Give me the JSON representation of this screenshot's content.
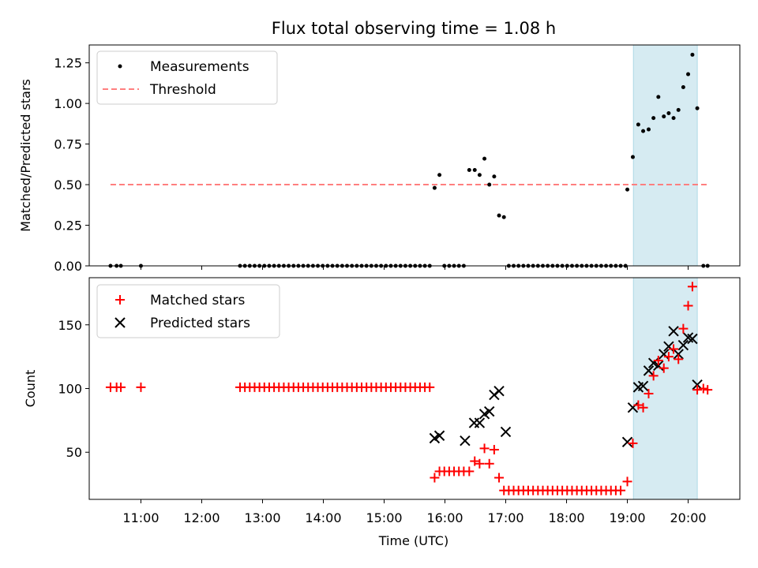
{
  "chart_data": {
    "type": "scatter",
    "title": "Flux total observing time = 1.08 h",
    "xlabel": "Time (UTC)",
    "xlim": [
      10.15,
      20.85
    ],
    "xticks": [
      {
        "value": 11,
        "label": "11:00"
      },
      {
        "value": 12,
        "label": "12:00"
      },
      {
        "value": 13,
        "label": "13:00"
      },
      {
        "value": 14,
        "label": "14:00"
      },
      {
        "value": 15,
        "label": "15:00"
      },
      {
        "value": 16,
        "label": "16:00"
      },
      {
        "value": 17,
        "label": "17:00"
      },
      {
        "value": 18,
        "label": "18:00"
      },
      {
        "value": 19,
        "label": "19:00"
      },
      {
        "value": 20,
        "label": "20:00"
      }
    ],
    "shaded_region": {
      "x_start": 19.1,
      "x_end": 20.15,
      "color": "#add8e6"
    },
    "colors": {
      "measurements": "#000000",
      "threshold": "#ff7f7f",
      "matched": "#ff0000",
      "predicted": "#000000"
    },
    "top_panel": {
      "ylabel": "Matched/Predicted stars",
      "ylim": [
        0,
        1.36
      ],
      "yticks": [
        "0.00",
        "0.25",
        "0.50",
        "0.75",
        "1.00",
        "1.25"
      ],
      "legend_position": "upper-left",
      "series": [
        {
          "name": "Measurements",
          "marker": "dot",
          "points": [
            [
              10.5,
              0
            ],
            [
              10.6,
              0
            ],
            [
              10.67,
              0
            ],
            [
              11.0,
              0
            ],
            [
              12.63,
              0
            ],
            [
              12.71,
              0
            ],
            [
              12.79,
              0
            ],
            [
              12.87,
              0
            ],
            [
              12.95,
              0
            ],
            [
              13.03,
              0
            ],
            [
              13.11,
              0
            ],
            [
              13.19,
              0
            ],
            [
              13.27,
              0
            ],
            [
              13.35,
              0
            ],
            [
              13.43,
              0
            ],
            [
              13.51,
              0
            ],
            [
              13.59,
              0
            ],
            [
              13.67,
              0
            ],
            [
              13.75,
              0
            ],
            [
              13.83,
              0
            ],
            [
              13.91,
              0
            ],
            [
              13.99,
              0
            ],
            [
              14.07,
              0
            ],
            [
              14.15,
              0
            ],
            [
              14.23,
              0
            ],
            [
              14.31,
              0
            ],
            [
              14.39,
              0
            ],
            [
              14.47,
              0
            ],
            [
              14.55,
              0
            ],
            [
              14.63,
              0
            ],
            [
              14.71,
              0
            ],
            [
              14.79,
              0
            ],
            [
              14.87,
              0
            ],
            [
              14.95,
              0
            ],
            [
              15.03,
              0
            ],
            [
              15.11,
              0
            ],
            [
              15.19,
              0
            ],
            [
              15.27,
              0
            ],
            [
              15.35,
              0
            ],
            [
              15.43,
              0
            ],
            [
              15.51,
              0
            ],
            [
              15.59,
              0
            ],
            [
              15.67,
              0
            ],
            [
              15.75,
              0
            ],
            [
              15.83,
              0.48
            ],
            [
              15.91,
              0.56
            ],
            [
              15.99,
              0
            ],
            [
              16.07,
              0
            ],
            [
              16.15,
              0
            ],
            [
              16.23,
              0
            ],
            [
              16.31,
              0
            ],
            [
              16.4,
              0.59
            ],
            [
              16.49,
              0.59
            ],
            [
              16.57,
              0.56
            ],
            [
              16.65,
              0.66
            ],
            [
              16.73,
              0.5
            ],
            [
              16.81,
              0.55
            ],
            [
              16.89,
              0.31
            ],
            [
              16.97,
              0.3
            ],
            [
              17.05,
              0
            ],
            [
              17.13,
              0
            ],
            [
              17.21,
              0
            ],
            [
              17.29,
              0
            ],
            [
              17.37,
              0
            ],
            [
              17.45,
              0
            ],
            [
              17.53,
              0
            ],
            [
              17.61,
              0
            ],
            [
              17.69,
              0
            ],
            [
              17.77,
              0
            ],
            [
              17.85,
              0
            ],
            [
              17.93,
              0
            ],
            [
              18.01,
              0
            ],
            [
              18.09,
              0
            ],
            [
              18.17,
              0
            ],
            [
              18.25,
              0
            ],
            [
              18.33,
              0
            ],
            [
              18.41,
              0
            ],
            [
              18.49,
              0
            ],
            [
              18.57,
              0
            ],
            [
              18.65,
              0
            ],
            [
              18.73,
              0
            ],
            [
              18.81,
              0
            ],
            [
              18.89,
              0
            ],
            [
              18.97,
              0
            ],
            [
              19.0,
              0.47
            ],
            [
              19.09,
              0.67
            ],
            [
              19.18,
              0.87
            ],
            [
              19.26,
              0.83
            ],
            [
              19.35,
              0.84
            ],
            [
              19.43,
              0.91
            ],
            [
              19.51,
              1.04
            ],
            [
              19.6,
              0.92
            ],
            [
              19.68,
              0.94
            ],
            [
              19.76,
              0.91
            ],
            [
              19.84,
              0.96
            ],
            [
              19.92,
              1.1
            ],
            [
              20.0,
              1.18
            ],
            [
              20.07,
              1.3
            ],
            [
              20.15,
              0.97
            ],
            [
              20.25,
              0
            ],
            [
              20.32,
              0
            ]
          ]
        },
        {
          "name": "Threshold",
          "marker": "dashed-line",
          "points": [
            [
              10.5,
              0.5
            ],
            [
              20.35,
              0.5
            ]
          ]
        }
      ]
    },
    "bottom_panel": {
      "ylabel": "Count",
      "ylim": [
        13,
        187
      ],
      "yticks": [
        {
          "value": 50,
          "label": "50"
        },
        {
          "value": 100,
          "label": "100"
        },
        {
          "value": 150,
          "label": "150"
        }
      ],
      "legend_position": "upper-left",
      "series": [
        {
          "name": "Matched stars",
          "marker": "plus",
          "points": [
            [
              10.5,
              101
            ],
            [
              10.6,
              101
            ],
            [
              10.67,
              101
            ],
            [
              11.0,
              101
            ],
            [
              12.63,
              101
            ],
            [
              12.71,
              101
            ],
            [
              12.79,
              101
            ],
            [
              12.87,
              101
            ],
            [
              12.95,
              101
            ],
            [
              13.03,
              101
            ],
            [
              13.11,
              101
            ],
            [
              13.19,
              101
            ],
            [
              13.27,
              101
            ],
            [
              13.35,
              101
            ],
            [
              13.43,
              101
            ],
            [
              13.51,
              101
            ],
            [
              13.59,
              101
            ],
            [
              13.67,
              101
            ],
            [
              13.75,
              101
            ],
            [
              13.83,
              101
            ],
            [
              13.91,
              101
            ],
            [
              13.99,
              101
            ],
            [
              14.07,
              101
            ],
            [
              14.15,
              101
            ],
            [
              14.23,
              101
            ],
            [
              14.31,
              101
            ],
            [
              14.39,
              101
            ],
            [
              14.47,
              101
            ],
            [
              14.55,
              101
            ],
            [
              14.63,
              101
            ],
            [
              14.71,
              101
            ],
            [
              14.79,
              101
            ],
            [
              14.87,
              101
            ],
            [
              14.95,
              101
            ],
            [
              15.03,
              101
            ],
            [
              15.11,
              101
            ],
            [
              15.19,
              101
            ],
            [
              15.27,
              101
            ],
            [
              15.35,
              101
            ],
            [
              15.43,
              101
            ],
            [
              15.51,
              101
            ],
            [
              15.59,
              101
            ],
            [
              15.67,
              101
            ],
            [
              15.75,
              101
            ],
            [
              15.83,
              30
            ],
            [
              15.91,
              35
            ],
            [
              15.99,
              35
            ],
            [
              16.07,
              35
            ],
            [
              16.15,
              35
            ],
            [
              16.23,
              35
            ],
            [
              16.31,
              35
            ],
            [
              16.4,
              35
            ],
            [
              16.49,
              43
            ],
            [
              16.57,
              41
            ],
            [
              16.65,
              53
            ],
            [
              16.73,
              41
            ],
            [
              16.81,
              52
            ],
            [
              16.89,
              30
            ],
            [
              16.97,
              20
            ],
            [
              17.05,
              20
            ],
            [
              17.13,
              20
            ],
            [
              17.21,
              20
            ],
            [
              17.29,
              20
            ],
            [
              17.37,
              20
            ],
            [
              17.45,
              20
            ],
            [
              17.53,
              20
            ],
            [
              17.61,
              20
            ],
            [
              17.69,
              20
            ],
            [
              17.77,
              20
            ],
            [
              17.85,
              20
            ],
            [
              17.93,
              20
            ],
            [
              18.01,
              20
            ],
            [
              18.09,
              20
            ],
            [
              18.17,
              20
            ],
            [
              18.25,
              20
            ],
            [
              18.33,
              20
            ],
            [
              18.41,
              20
            ],
            [
              18.49,
              20
            ],
            [
              18.57,
              20
            ],
            [
              18.65,
              20
            ],
            [
              18.73,
              20
            ],
            [
              18.81,
              20
            ],
            [
              18.89,
              20
            ],
            [
              19.0,
              27
            ],
            [
              19.09,
              57
            ],
            [
              19.18,
              87
            ],
            [
              19.26,
              85
            ],
            [
              19.35,
              96
            ],
            [
              19.43,
              110
            ],
            [
              19.51,
              122
            ],
            [
              19.6,
              116
            ],
            [
              19.68,
              125
            ],
            [
              19.76,
              131
            ],
            [
              19.84,
              123
            ],
            [
              19.92,
              147
            ],
            [
              20.0,
              165
            ],
            [
              20.07,
              180
            ],
            [
              20.15,
              99
            ],
            [
              20.25,
              100
            ],
            [
              20.32,
              99
            ]
          ]
        },
        {
          "name": "Predicted stars",
          "marker": "x",
          "points": [
            [
              15.83,
              61
            ],
            [
              15.91,
              63
            ],
            [
              16.33,
              59
            ],
            [
              16.48,
              73
            ],
            [
              16.57,
              73
            ],
            [
              16.65,
              80
            ],
            [
              16.73,
              82
            ],
            [
              16.81,
              95
            ],
            [
              16.89,
              98
            ],
            [
              17.0,
              66
            ],
            [
              19.0,
              58
            ],
            [
              19.09,
              85
            ],
            [
              19.18,
              101
            ],
            [
              19.26,
              102
            ],
            [
              19.35,
              114
            ],
            [
              19.43,
              120
            ],
            [
              19.51,
              118
            ],
            [
              19.6,
              127
            ],
            [
              19.68,
              133
            ],
            [
              19.76,
              145
            ],
            [
              19.84,
              127
            ],
            [
              19.92,
              134
            ],
            [
              20.0,
              140
            ],
            [
              20.07,
              139
            ],
            [
              20.15,
              103
            ]
          ]
        }
      ]
    }
  }
}
